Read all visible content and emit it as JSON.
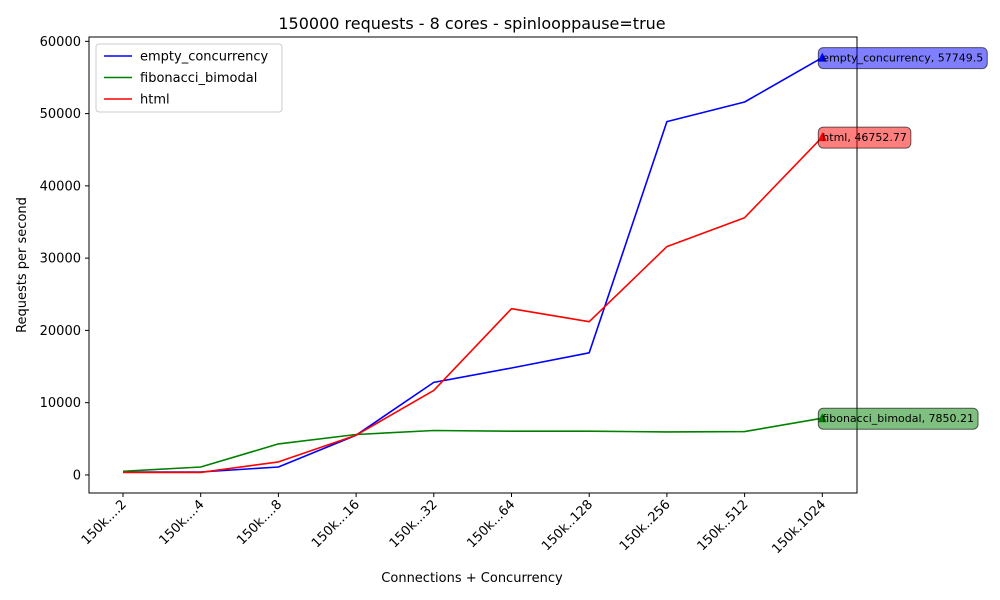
{
  "chart_data": {
    "type": "line",
    "title": "150000 requests - 8 cores - spinlooppause=true",
    "xlabel": "Connections + Concurrency",
    "ylabel": "Requests per second",
    "categories": [
      "150k....2",
      "150k....4",
      "150k....8",
      "150k...16",
      "150k...32",
      "150k...64",
      "150k..128",
      "150k..256",
      "150k..512",
      "150k.1024"
    ],
    "ylim": [
      -2500,
      60600
    ],
    "yticks": [
      0,
      10000,
      20000,
      30000,
      40000,
      50000,
      60000
    ],
    "grid": false,
    "legend_position": "upper-left",
    "series": [
      {
        "name": "empty_concurrency",
        "color": "#0000ff",
        "values": [
          400,
          400,
          1100,
          5500,
          12800,
          14800,
          16900,
          48900,
          51600,
          57749.5
        ],
        "annotation": "empty_concurrency, 57749.5"
      },
      {
        "name": "fibonacci_bimodal",
        "color": "#008000",
        "values": [
          500,
          1100,
          4300,
          5600,
          6150,
          6050,
          6050,
          5950,
          6000,
          7850.21
        ],
        "annotation": "fibonacci_bimodal, 7850.21"
      },
      {
        "name": "html",
        "color": "#ff0000",
        "values": [
          350,
          350,
          1800,
          5500,
          11700,
          23000,
          21200,
          31600,
          35600,
          46752.77
        ],
        "annotation": "html, 46752.77"
      }
    ]
  }
}
